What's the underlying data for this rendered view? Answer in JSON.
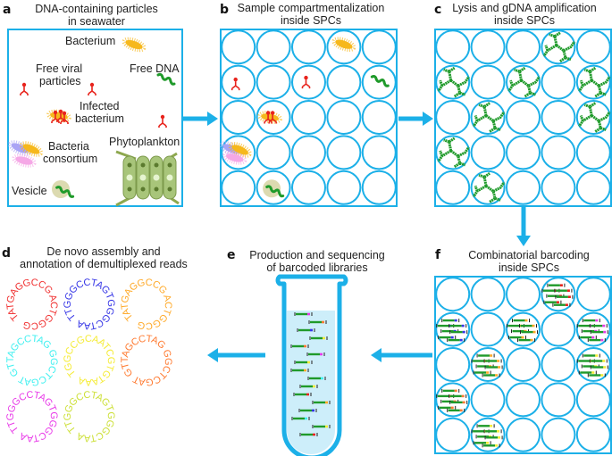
{
  "colors": {
    "frame": "#1cb0e8",
    "arrow": "#1cb0e8",
    "dna": "#1f9a2a",
    "virus": "#e8231c",
    "bacterium": "#f6b81c",
    "liquid": "#cdeefa"
  },
  "panel_a": {
    "letter": "a",
    "title": [
      "DNA-containing particles",
      "in seawater"
    ],
    "labels": {
      "bacterium": "Bacterium",
      "viral": [
        "Free viral",
        "particles"
      ],
      "free_dna": "Free DNA",
      "infected": [
        "Infected",
        "bacterium"
      ],
      "consortium": [
        "Bacteria",
        "consortium"
      ],
      "phytoplankton": "Phytoplankton",
      "vesicle": "Vesicle"
    }
  },
  "panel_b": {
    "letter": "b",
    "title": [
      "Sample compartmentalization",
      "inside SPCs"
    ]
  },
  "panel_c": {
    "letter": "c",
    "title": [
      "Lysis and gDNA amplification",
      "inside SPCs"
    ]
  },
  "panel_d": {
    "letter": "d",
    "title": [
      "De novo assembly and",
      "annotation of demultiplexed reads"
    ],
    "contigs": [
      {
        "seq": "TATGAGGCCG ACTGGCG",
        "color": "#f03030"
      },
      {
        "seq": "TTGGGCCTAGTGGGCTAA",
        "color": "#3535e6"
      },
      {
        "seq": "TATGAGGCCG ACTGGCG",
        "color": "#ffaa2a"
      },
      {
        "seq": "GTTAGCCTAG GGCTCGAT",
        "color": "#3ef0f0"
      },
      {
        "seq": "TGGCCGCAATCGTGTAAA",
        "color": "#f5ec38"
      },
      {
        "seq": "GTTAGCCTAG GGCTCGAT",
        "color": "#ff7a30"
      },
      {
        "seq": "TTGGGCCTAGTGGGCTAA",
        "color": "#e83ae8"
      },
      {
        "seq": "TTGGGCCTAGTGGGCTAA",
        "color": "#cde038"
      }
    ]
  },
  "panel_e": {
    "letter": "e",
    "title": [
      "Production and sequencing",
      "of barcoded libraries"
    ]
  },
  "panel_f": {
    "letter": "f",
    "title": [
      "Combinatorial barcoding",
      "inside SPCs"
    ]
  }
}
